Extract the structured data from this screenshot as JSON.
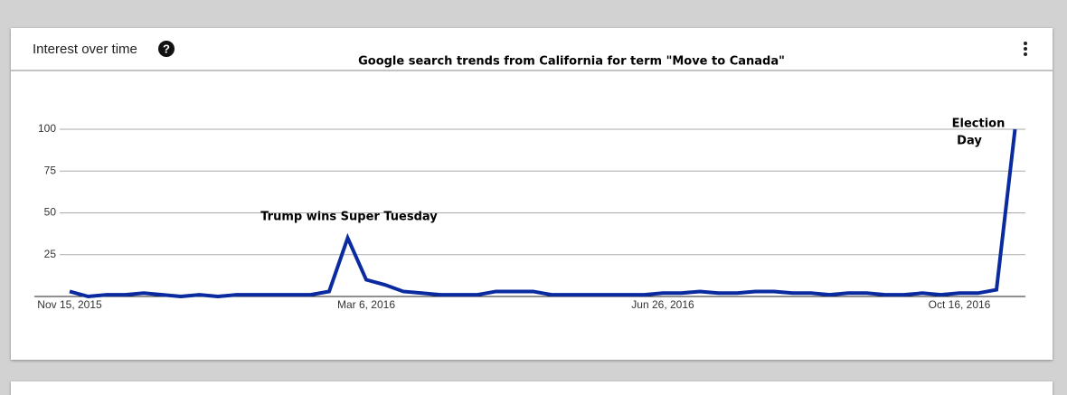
{
  "card": {
    "header": "Interest over time"
  },
  "chart_data": {
    "type": "line",
    "title": "Google search trends from California for term \"Move to Canada\"",
    "categories": [
      "Nov 15, 2015",
      null,
      null,
      null,
      null,
      null,
      null,
      null,
      null,
      null,
      null,
      null,
      null,
      null,
      null,
      null,
      "Mar 6, 2016",
      null,
      null,
      null,
      null,
      null,
      null,
      null,
      null,
      null,
      null,
      null,
      null,
      null,
      null,
      null,
      "Jun 26, 2016",
      null,
      null,
      null,
      null,
      null,
      null,
      null,
      null,
      null,
      null,
      null,
      null,
      null,
      null,
      null,
      "Oct 16, 2016",
      null,
      null,
      null
    ],
    "series": [
      {
        "name": "Move to Canada",
        "color": "#0a2aa0",
        "values": [
          3,
          0,
          1,
          1,
          2,
          1,
          0,
          1,
          0,
          1,
          1,
          1,
          1,
          1,
          3,
          35,
          10,
          7,
          3,
          2,
          1,
          1,
          1,
          3,
          3,
          3,
          1,
          1,
          1,
          1,
          1,
          1,
          2,
          2,
          3,
          2,
          2,
          3,
          3,
          2,
          2,
          1,
          2,
          2,
          1,
          1,
          2,
          1,
          2,
          2,
          4,
          100
        ]
      }
    ],
    "ylim": [
      0,
      100
    ],
    "yticks": [
      25,
      50,
      75,
      100
    ],
    "grid": true,
    "annotations": [
      "Trump wins Super Tuesday",
      [
        "Election",
        "Day"
      ]
    ]
  }
}
